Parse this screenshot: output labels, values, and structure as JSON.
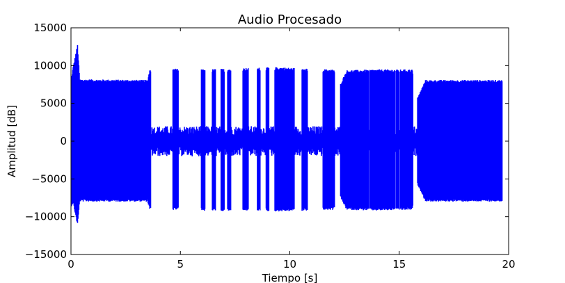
{
  "chart_data": {
    "type": "line",
    "title": "Audio Procesado",
    "xlabel": "Tiempo [s]",
    "ylabel": "Amplitud [dB]",
    "xlim": [
      0,
      20
    ],
    "ylim": [
      -15000,
      15000
    ],
    "xticks": [
      0,
      5,
      10,
      15,
      20
    ],
    "xtick_labels": [
      "0",
      "5",
      "10",
      "15",
      "20"
    ],
    "yticks": [
      -15000,
      -10000,
      -5000,
      0,
      5000,
      10000,
      15000
    ],
    "ytick_labels": [
      "−15000",
      "−10000",
      "−5000",
      "0",
      "5000",
      "10000",
      "15000"
    ],
    "grid": false,
    "series": [
      {
        "color": "#0000ff",
        "envelope": [
          {
            "t": 0.0,
            "max": 8000,
            "min": -8700
          },
          {
            "t": 0.1,
            "max": 9900,
            "min": -8200
          },
          {
            "t": 0.3,
            "max": 12800,
            "min": -11200
          },
          {
            "t": 0.4,
            "max": 8200,
            "min": -8000
          },
          {
            "t": 3.5,
            "max": 8100,
            "min": -8000
          },
          {
            "t": 3.6,
            "max": 9500,
            "min": -9100
          },
          {
            "t": 4.5,
            "max": 9500,
            "min": -9200
          },
          {
            "t": 4.7,
            "max": 9600,
            "min": -9100
          },
          {
            "t": 6.0,
            "max": 9500,
            "min": -9200
          },
          {
            "t": 7.2,
            "max": 9600,
            "min": -9300
          },
          {
            "t": 8.0,
            "max": 9700,
            "min": -9200
          },
          {
            "t": 9.5,
            "max": 9800,
            "min": -9300
          },
          {
            "t": 10.7,
            "max": 9600,
            "min": -9200
          },
          {
            "t": 12.0,
            "max": 9500,
            "min": -9100
          },
          {
            "t": 12.3,
            "max": 7500,
            "min": -7400
          },
          {
            "t": 12.6,
            "max": 9400,
            "min": -9100
          },
          {
            "t": 14.0,
            "max": 9500,
            "min": -9200
          },
          {
            "t": 15.6,
            "max": 9500,
            "min": -9100
          },
          {
            "t": 15.8,
            "max": 5500,
            "min": -5500
          },
          {
            "t": 16.2,
            "max": 8100,
            "min": -8000
          },
          {
            "t": 19.7,
            "max": 8100,
            "min": -8000
          }
        ],
        "gaps": [
          {
            "start": 3.65,
            "end": 4.65,
            "level": 2000
          },
          {
            "start": 4.9,
            "end": 5.95,
            "level": 2000
          },
          {
            "start": 6.12,
            "end": 6.45,
            "level": 2000
          },
          {
            "start": 6.6,
            "end": 6.85,
            "level": 2000
          },
          {
            "start": 7.0,
            "end": 7.15,
            "level": 2000
          },
          {
            "start": 7.3,
            "end": 7.85,
            "level": 2000
          },
          {
            "start": 8.1,
            "end": 8.5,
            "level": 2000
          },
          {
            "start": 8.65,
            "end": 8.9,
            "level": 2000
          },
          {
            "start": 9.05,
            "end": 9.3,
            "level": 2000
          },
          {
            "start": 10.2,
            "end": 10.55,
            "level": 2000
          },
          {
            "start": 10.8,
            "end": 11.5,
            "level": 2000
          },
          {
            "start": 12.05,
            "end": 12.3,
            "level": 2000
          },
          {
            "start": 13.6,
            "end": 13.65,
            "level": 1500
          },
          {
            "start": 14.8,
            "end": 14.85,
            "level": 1500
          },
          {
            "start": 15.0,
            "end": 15.05,
            "level": 1500
          },
          {
            "start": 15.62,
            "end": 15.82,
            "level": 2000
          }
        ]
      }
    ]
  }
}
